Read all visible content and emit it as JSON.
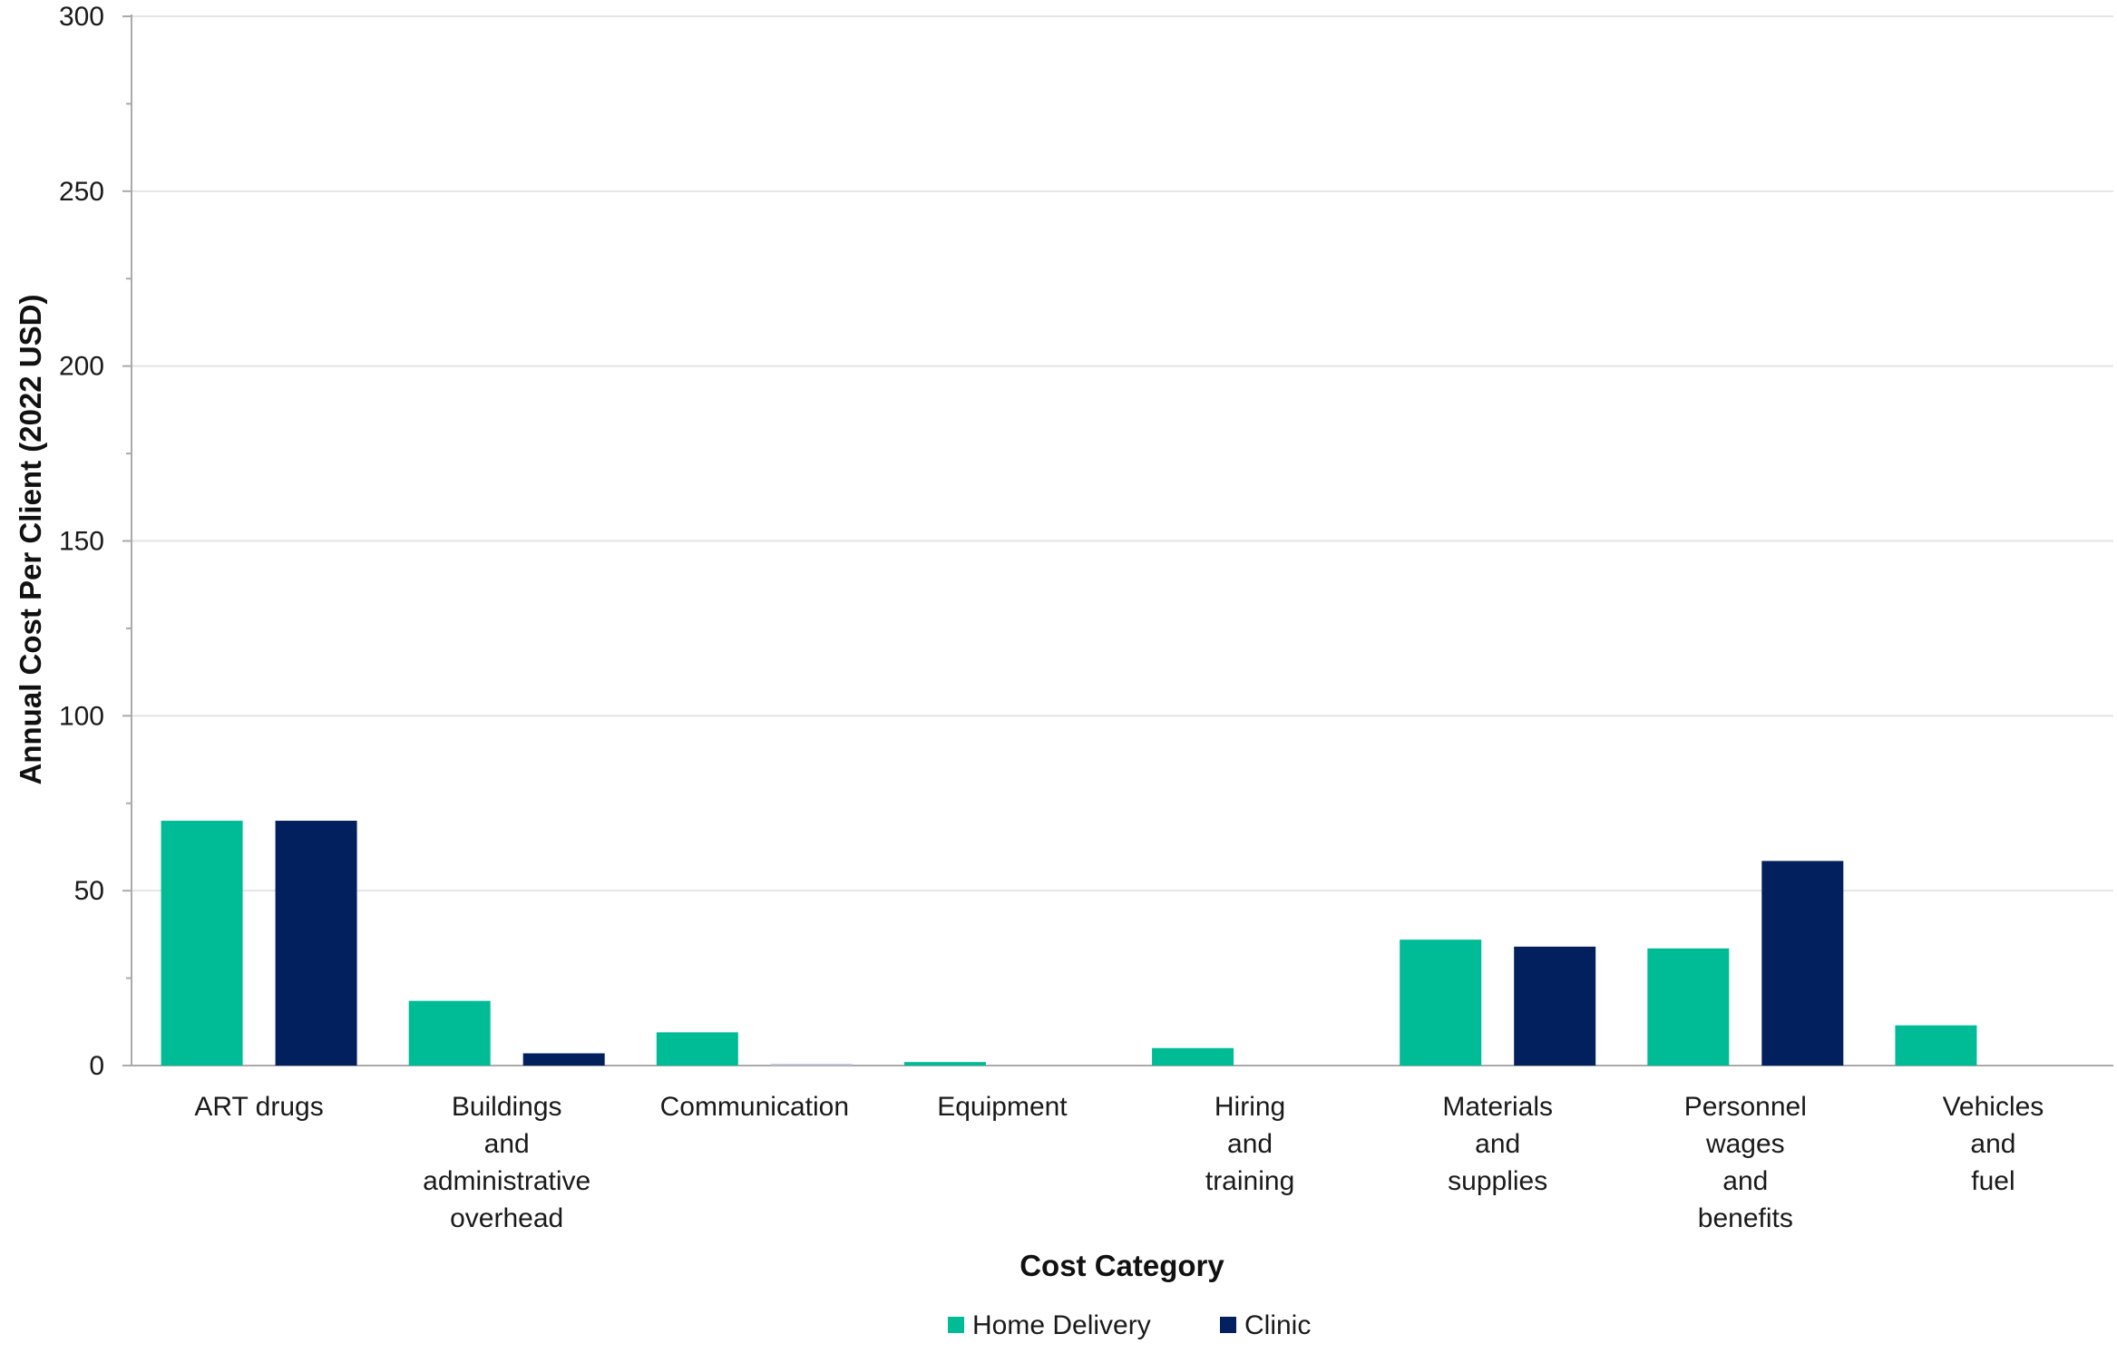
{
  "chart_data": {
    "type": "bar",
    "xlabel": "Cost Category",
    "ylabel": "Annual Cost Per Client (2022 USD)",
    "ylim": [
      0,
      300
    ],
    "yticks": [
      0,
      50,
      100,
      150,
      200,
      250,
      300
    ],
    "grid": true,
    "legend_position": "bottom",
    "categories": [
      [
        "ART drugs"
      ],
      [
        "Buildings",
        "and",
        "administrative",
        "overhead"
      ],
      [
        "Communication"
      ],
      [
        "Equipment"
      ],
      [
        "Hiring",
        "and",
        "training"
      ],
      [
        "Materials",
        "and",
        "supplies"
      ],
      [
        "Personnel",
        "wages",
        "and",
        "benefits"
      ],
      [
        "Vehicles",
        "and",
        "fuel"
      ]
    ],
    "series": [
      {
        "name": "Home Delivery",
        "color": "#00BC96",
        "values": [
          70,
          18.5,
          9.5,
          1,
          5,
          36,
          33.5,
          11.5
        ]
      },
      {
        "name": "Clinic",
        "color": "#03205E",
        "values": [
          70,
          3.5,
          0.5,
          0,
          0,
          34,
          58.5,
          0
        ]
      }
    ],
    "colors": {
      "grid": "#e4e4e4",
      "axis": "#aaaaaa"
    }
  }
}
